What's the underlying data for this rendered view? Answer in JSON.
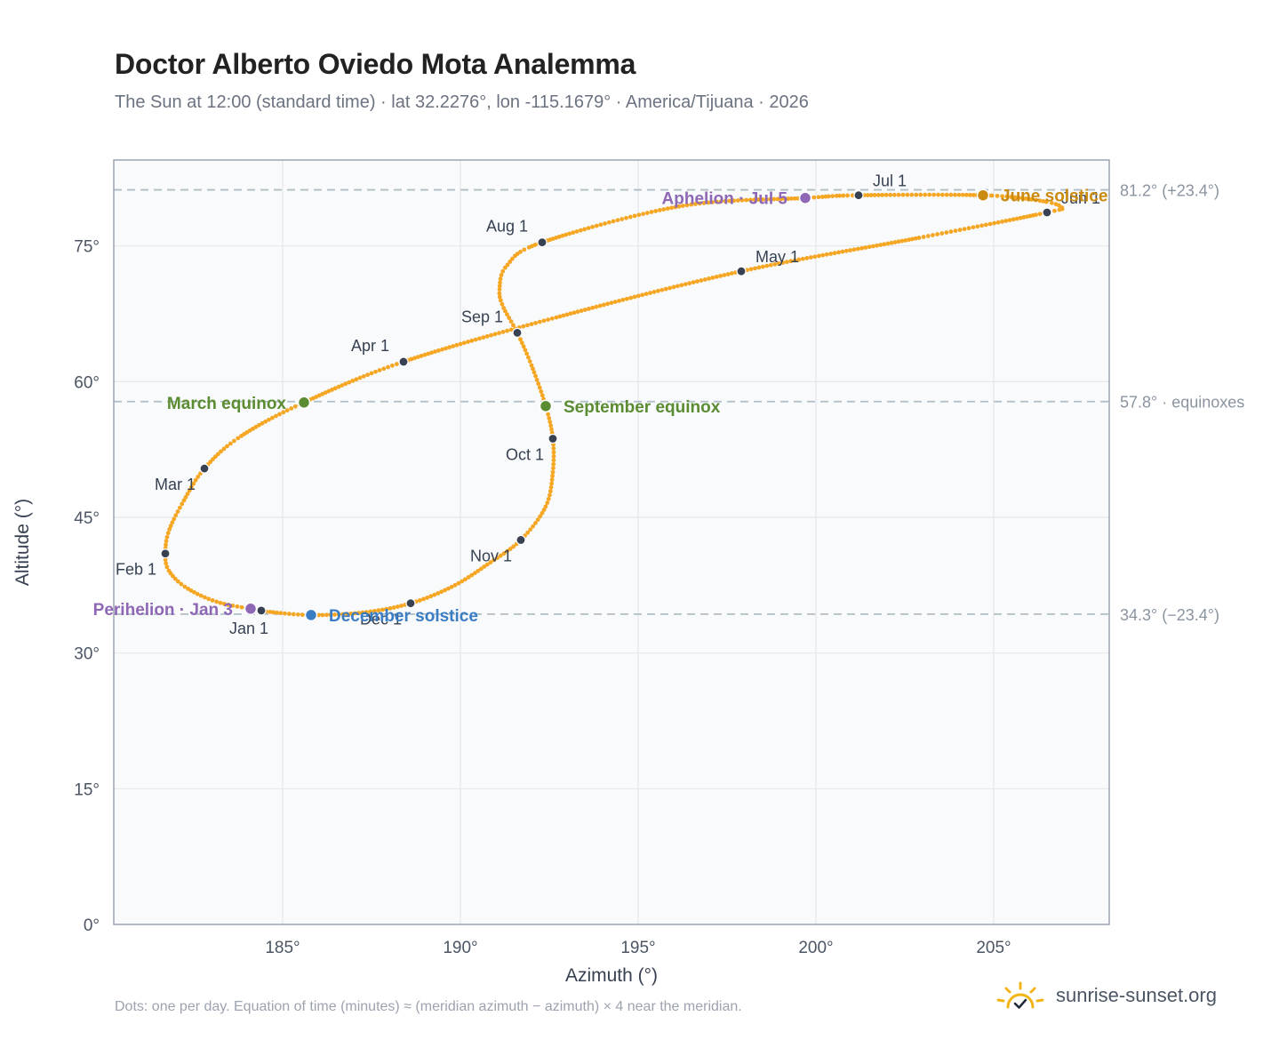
{
  "title": "Doctor Alberto Oviedo Mota Analemma",
  "subtitle": "The Sun at 12:00 (standard time) · lat 32.2276°, lon -115.1679° · America/Tijuana · 2026",
  "footnote": "Dots: one per day. Equation of time (minutes) ≈ (meridian azimuth − azimuth) × 4 near the meridian.",
  "brand": {
    "text": "sunrise-sunset.org",
    "icon": "sun-logo-icon"
  },
  "colors": {
    "curve": "#f5a623",
    "month_dot": "#374151",
    "equinox": "#5b8c32",
    "june_solstice": "#c98a0e",
    "december_solstice": "#3b7dc4",
    "apsis": "#8e68b5",
    "reference_line": "#b0bec5",
    "plot_bg": "#f8fafc",
    "grid": "#e5e7eb"
  },
  "chart_data": {
    "type": "scatter",
    "xlabel": "Azimuth (°)",
    "ylabel": "Altitude (°)",
    "xlim": [
      180.25,
      208.25
    ],
    "ylim": [
      0,
      84.5
    ],
    "xticks": [
      185,
      190,
      195,
      200,
      205
    ],
    "yticks": [
      0,
      15,
      30,
      45,
      60,
      75
    ],
    "grid": true,
    "reference_lines": [
      {
        "y": 81.2,
        "label": "81.2° (+23.4°)"
      },
      {
        "y": 57.8,
        "label": "57.8° · equinoxes"
      },
      {
        "y": 34.3,
        "label": "34.3° (−23.4°)"
      }
    ],
    "path_nodes": [
      {
        "date": "Jan 1",
        "az": 184.4,
        "alt": 34.7
      },
      {
        "date": "Jan 8",
        "az": 183.2,
        "alt": 35.6
      },
      {
        "date": "Jan 16",
        "az": 182.3,
        "alt": 37.2
      },
      {
        "date": "Jan 24",
        "az": 181.8,
        "alt": 39.1
      },
      {
        "date": "Feb 1",
        "az": 181.7,
        "alt": 41.0
      },
      {
        "date": "Feb 10",
        "az": 181.8,
        "alt": 43.5
      },
      {
        "date": "Feb 19",
        "az": 182.2,
        "alt": 46.7
      },
      {
        "date": "Mar 1",
        "az": 182.8,
        "alt": 50.4
      },
      {
        "date": "Mar 10",
        "az": 183.8,
        "alt": 53.9
      },
      {
        "date": "Mar 20",
        "az": 185.6,
        "alt": 57.7
      },
      {
        "date": "Apr 1",
        "az": 188.4,
        "alt": 62.2
      },
      {
        "date": "Apr 15",
        "az": 192.7,
        "alt": 67.1
      },
      {
        "date": "May 1",
        "az": 197.9,
        "alt": 72.2
      },
      {
        "date": "May 16",
        "az": 202.9,
        "alt": 75.9
      },
      {
        "date": "Jun 1",
        "az": 206.5,
        "alt": 78.7
      },
      {
        "date": "Jun 8",
        "az": 206.9,
        "alt": 79.3
      },
      {
        "date": "Jun 14",
        "az": 206.3,
        "alt": 80.0
      },
      {
        "date": "Jun 21",
        "az": 204.7,
        "alt": 80.6
      },
      {
        "date": "Jul 1",
        "az": 201.2,
        "alt": 80.6
      },
      {
        "date": "Jul 5",
        "az": 199.7,
        "alt": 80.3
      },
      {
        "date": "Jul 15",
        "az": 196.2,
        "alt": 79.4
      },
      {
        "date": "Aug 1",
        "az": 192.3,
        "alt": 75.4
      },
      {
        "date": "Aug 10",
        "az": 191.3,
        "alt": 72.8
      },
      {
        "date": "Aug 18",
        "az": 191.1,
        "alt": 70.2
      },
      {
        "date": "Aug 24",
        "az": 191.2,
        "alt": 68.3
      },
      {
        "date": "Sep 1",
        "az": 191.6,
        "alt": 65.4
      },
      {
        "date": "Sep 10",
        "az": 192.0,
        "alt": 61.8
      },
      {
        "date": "Sep 22",
        "az": 192.4,
        "alt": 57.3
      },
      {
        "date": "Oct 1",
        "az": 192.6,
        "alt": 53.7
      },
      {
        "date": "Oct 10",
        "az": 192.6,
        "alt": 50.0
      },
      {
        "date": "Oct 20",
        "az": 192.4,
        "alt": 46.2
      },
      {
        "date": "Nov 1",
        "az": 191.7,
        "alt": 42.5
      },
      {
        "date": "Nov 10",
        "az": 190.8,
        "alt": 39.9
      },
      {
        "date": "Nov 20",
        "az": 189.8,
        "alt": 37.4
      },
      {
        "date": "Dec 1",
        "az": 188.6,
        "alt": 35.5
      },
      {
        "date": "Dec 10",
        "az": 187.3,
        "alt": 34.5
      },
      {
        "date": "Dec 21",
        "az": 185.8,
        "alt": 34.2
      },
      {
        "date": "Dec 31",
        "az": 184.5,
        "alt": 34.6
      }
    ],
    "month_markers": [
      {
        "label": "Jan 1",
        "az": 184.4,
        "alt": 34.7,
        "pos": "below"
      },
      {
        "label": "Feb 1",
        "az": 181.7,
        "alt": 41.0,
        "pos": "below-left"
      },
      {
        "label": "Mar 1",
        "az": 182.8,
        "alt": 50.4,
        "pos": "below-left"
      },
      {
        "label": "Apr 1",
        "az": 188.4,
        "alt": 62.2,
        "pos": "above-left"
      },
      {
        "label": "May 1",
        "az": 197.9,
        "alt": 72.2,
        "pos": "above-right"
      },
      {
        "label": "Jun 1",
        "az": 206.5,
        "alt": 78.7,
        "pos": "above-right"
      },
      {
        "label": "Jul 1",
        "az": 201.2,
        "alt": 80.6,
        "pos": "above-right"
      },
      {
        "label": "Aug 1",
        "az": 192.3,
        "alt": 75.4,
        "pos": "above-left"
      },
      {
        "label": "Sep 1",
        "az": 191.6,
        "alt": 65.4,
        "pos": "above-left"
      },
      {
        "label": "Oct 1",
        "az": 192.6,
        "alt": 53.7,
        "pos": "below-left"
      },
      {
        "label": "Nov 1",
        "az": 191.7,
        "alt": 42.5,
        "pos": "below-left"
      },
      {
        "label": "Dec 1",
        "az": 188.6,
        "alt": 35.5,
        "pos": "below-left"
      }
    ],
    "events": [
      {
        "label": "March equinox",
        "az": 185.6,
        "alt": 57.7,
        "color": "#5b8c32",
        "pos": "left"
      },
      {
        "label": "September equinox",
        "az": 192.4,
        "alt": 57.3,
        "color": "#5b8c32",
        "pos": "right"
      },
      {
        "label": "June solstice",
        "az": 204.7,
        "alt": 80.6,
        "color": "#c98a0e",
        "pos": "right"
      },
      {
        "label": "December solstice",
        "az": 185.8,
        "alt": 34.2,
        "color": "#3b7dc4",
        "pos": "right"
      },
      {
        "label": "Aphelion · Jul 5",
        "az": 199.7,
        "alt": 80.3,
        "color": "#8e68b5",
        "pos": "left"
      },
      {
        "label": "Perihelion · Jan 3",
        "az": 184.1,
        "alt": 34.9,
        "color": "#8e68b5",
        "pos": "left"
      }
    ]
  }
}
